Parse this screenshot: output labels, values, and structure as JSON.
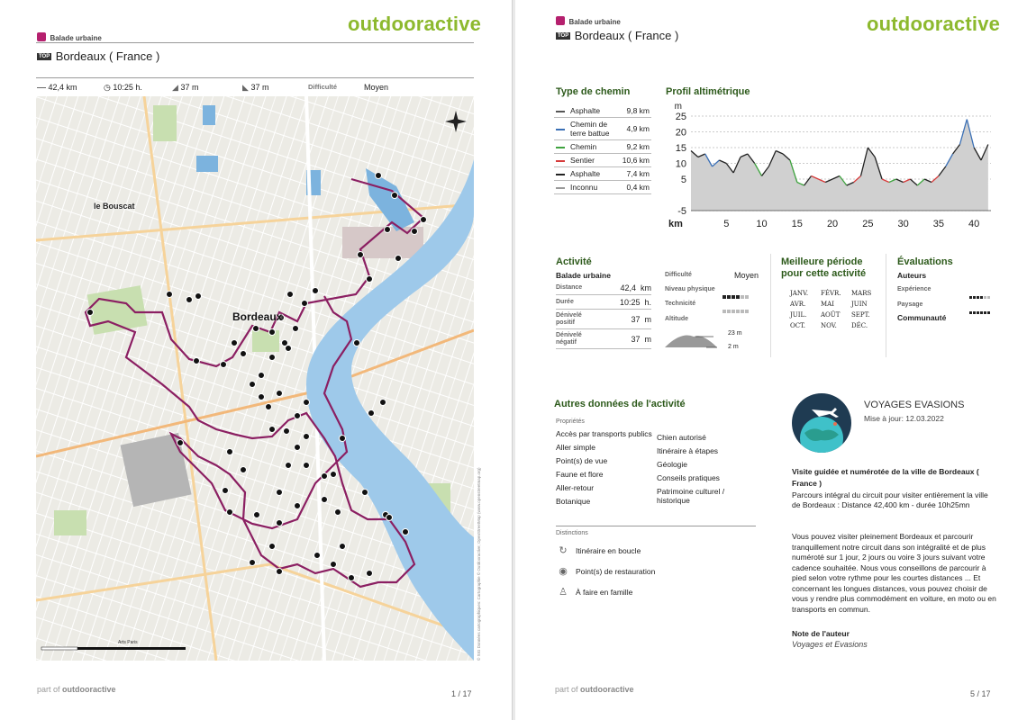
{
  "left": {
    "brand": "outdooractive",
    "category": "Balade urbaine",
    "top_badge": "TOP",
    "place": "Bordeaux ( France )",
    "stats": {
      "distance": "42,4 km",
      "duration": "10:25 h.",
      "ascent": "37 m",
      "descent": "37 m",
      "difficulty_label": "Difficulté",
      "difficulty_value": "Moyen"
    },
    "map": {
      "label_city": "Bordeaux",
      "label_suburb": "le Bouscat",
      "attribution": "© SIG Données cartographiques: Cartographie © Outdooractive; OpenStreetMap (www.openstreetmap.org)",
      "scale_label": "Arts Paris"
    },
    "footer_prefix": "part of",
    "footer_brand": "outdooractive",
    "page": "1 / 17"
  },
  "right": {
    "brand": "outdooractive",
    "category": "Balade urbaine",
    "top_badge": "TOP",
    "place": "Bordeaux ( France )",
    "path_types_title": "Type de chemin",
    "path_types": [
      {
        "name": "Asphalte",
        "value": "9,8 km",
        "color": "#555555"
      },
      {
        "name": "Chemin de terre battue",
        "value": "4,9 km",
        "color": "#3a6fb5"
      },
      {
        "name": "Chemin",
        "value": "9,2 km",
        "color": "#3fa33f"
      },
      {
        "name": "Sentier",
        "value": "10,6 km",
        "color": "#d63b3b"
      },
      {
        "name": "Asphalte",
        "value": "7,4 km",
        "color": "#222222"
      },
      {
        "name": "Inconnu",
        "value": "0,4 km",
        "color": "#999999"
      }
    ],
    "profile_title": "Profil altimétrique",
    "chart_data": {
      "type": "area",
      "title": "Profil altimétrique",
      "ylabel": "m",
      "xlabel": "km",
      "yticks": [
        25,
        20,
        15,
        10,
        5,
        -5
      ],
      "xticks": [
        5,
        10,
        15,
        20,
        25,
        30,
        35,
        40
      ],
      "ylim": [
        -5,
        27
      ],
      "xlim": [
        0,
        42.4
      ],
      "x": [
        0,
        1,
        2,
        3,
        4,
        5,
        6,
        7,
        8,
        9,
        10,
        11,
        12,
        13,
        14,
        15,
        16,
        17,
        18,
        19,
        20,
        21,
        22,
        23,
        24,
        25,
        26,
        27,
        28,
        29,
        30,
        31,
        32,
        33,
        34,
        35,
        36,
        37,
        38,
        39,
        40,
        41,
        42
      ],
      "y": [
        14,
        12,
        13,
        9,
        11,
        10,
        7,
        12,
        13,
        10,
        6,
        9,
        14,
        13,
        11,
        4,
        3,
        6,
        5,
        4,
        5,
        6,
        3,
        4,
        6,
        15,
        12,
        5,
        4,
        5,
        4,
        5,
        3,
        5,
        4,
        6,
        9,
        13,
        16,
        24,
        15,
        11,
        16
      ]
    },
    "activity": {
      "title": "Activité",
      "type": "Balade urbaine",
      "rows": [
        {
          "label": "Distance",
          "value": "42,4  km"
        },
        {
          "label": "Durée",
          "value": "10:25  h."
        },
        {
          "label": "Dénivelé positif",
          "value": "37  m"
        },
        {
          "label": "Dénivelé négatif",
          "value": "37  m"
        }
      ],
      "difficulty_label": "Difficulté",
      "difficulty_value": "Moyen",
      "physical_label": "Niveau physique",
      "technique_label": "Technicité",
      "altitude_label": "Altitude",
      "alt_max": "23 m",
      "alt_min": "2 m"
    },
    "period": {
      "title": "Meilleure période pour cette activité",
      "months": [
        "JANV.",
        "FÉVR.",
        "MARS",
        "AVR.",
        "MAI",
        "JUIN",
        "JUIL.",
        "AOÛT",
        "SEPT.",
        "OCT.",
        "NOV.",
        "DÉC."
      ]
    },
    "ratings": {
      "title": "Évaluations",
      "authors": "Auteurs",
      "experience": "Expérience",
      "landscape": "Paysage",
      "community": "Communauté"
    },
    "other": {
      "title": "Autres données de l'activité",
      "props_label": "Propriétés",
      "props_left": [
        "Accès par transports publics",
        "Aller simple",
        "Point(s) de vue",
        "Faune et flore",
        "Aller-retour",
        "Botanique"
      ],
      "props_right": [
        "Chien autorisé",
        "Itinéraire à étapes",
        "Géologie",
        "Conseils pratiques",
        "Patrimoine culturel / historique"
      ],
      "distinctions_label": "Distinctions",
      "distinctions": [
        "Itinéraire en boucle",
        "Point(s) de restauration",
        "À faire en famille"
      ]
    },
    "author": {
      "name": "VOYAGES EVASIONS",
      "updated": "Mise à jour: 12.03.2022",
      "desc_title": "Visite guidée et numérotée de la ville de Bordeaux ( France )",
      "desc1": "Parcours intégral du circuit pour visiter entièrement la ville de Bordeaux : Distance 42,400 km - durée 10h25mn",
      "desc2": "Vous pouvez visiter pleinement Bordeaux et parcourir tranquillement notre circuit dans son intégralité et de plus numéroté sur 1 jour, 2 jours ou voire 3 jours suivant votre cadence souhaitée. Nous vous conseillons de parcourir à pied selon votre rythme pour les courtes distances ... Et concernant les longues distances, vous pouvez choisir de vous y rendre plus commodément en voiture, en moto ou en transports en commun.",
      "note_label": "Note de l'auteur",
      "note_value": "Voyages et Evasions"
    },
    "footer_prefix": "part of",
    "footer_brand": "outdooractive",
    "page": "5 / 17"
  }
}
